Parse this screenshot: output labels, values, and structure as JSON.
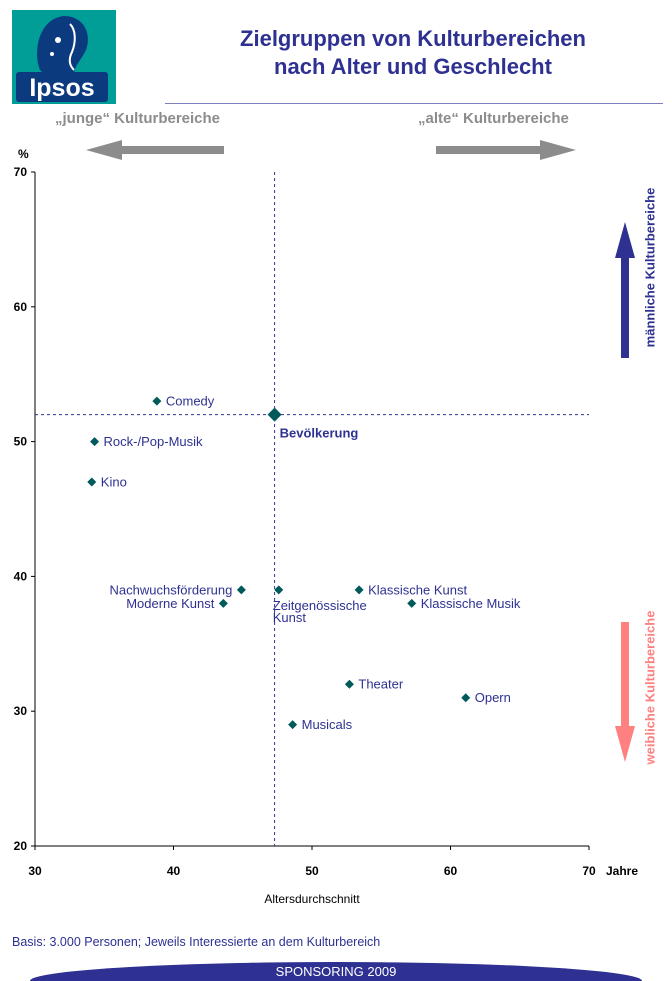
{
  "logo": {
    "text": "Ipsos"
  },
  "title": {
    "line1": "Zielgruppen von Kulturbereichen",
    "line2": "nach Alter und Geschlecht"
  },
  "direction": {
    "young": "„junge“ Kulturbereiche",
    "old": "„alte“ Kulturbereiche",
    "male": "männliche Kulturbereiche",
    "female": "weibliche Kulturbereiche"
  },
  "colors": {
    "accent": "#2e3192",
    "marker": "#005a5a",
    "arrow_gray": "#8c8c8c",
    "male": "#2e3192",
    "female": "#ff8080",
    "logo_bg": "#009e96"
  },
  "chart_data": {
    "type": "scatter",
    "xlabel": "Altersdurchschnitt",
    "xunit": "Jahre",
    "ylabel": "%",
    "xlim": [
      30,
      70
    ],
    "ylim": [
      20,
      70
    ],
    "xticks": [
      30,
      40,
      50,
      60,
      70
    ],
    "yticks": [
      20,
      30,
      40,
      50,
      60,
      70
    ],
    "grid": false,
    "reference": {
      "label": "Bevölkerung",
      "x": 47.3,
      "y": 52
    },
    "points": [
      {
        "label": "Comedy",
        "x": 38.8,
        "y": 53,
        "anchor": "right"
      },
      {
        "label": "Rock-/Pop-Musik",
        "x": 34.3,
        "y": 50,
        "anchor": "right"
      },
      {
        "label": "Kino",
        "x": 34.1,
        "y": 47,
        "anchor": "right"
      },
      {
        "label": "Nachwuchsförderung",
        "x": 44.9,
        "y": 39,
        "anchor": "left"
      },
      {
        "label": "Moderne Kunst",
        "x": 43.6,
        "y": 38,
        "anchor": "left"
      },
      {
        "label": "Zeitgenössische Kunst",
        "x": 47.6,
        "y": 39,
        "anchor": "below"
      },
      {
        "label": "Klassische Kunst",
        "x": 53.4,
        "y": 39,
        "anchor": "right"
      },
      {
        "label": "Klassische Musik",
        "x": 57.2,
        "y": 38,
        "anchor": "right"
      },
      {
        "label": "Theater",
        "x": 52.7,
        "y": 32,
        "anchor": "right"
      },
      {
        "label": "Opern",
        "x": 61.1,
        "y": 31,
        "anchor": "right"
      },
      {
        "label": "Musicals",
        "x": 48.6,
        "y": 29,
        "anchor": "right"
      }
    ]
  },
  "footer": {
    "basis": "Basis: 3.000 Personen; Jeweils Interessierte an dem Kulturbereich",
    "banner": "SPONSORING 2009"
  }
}
